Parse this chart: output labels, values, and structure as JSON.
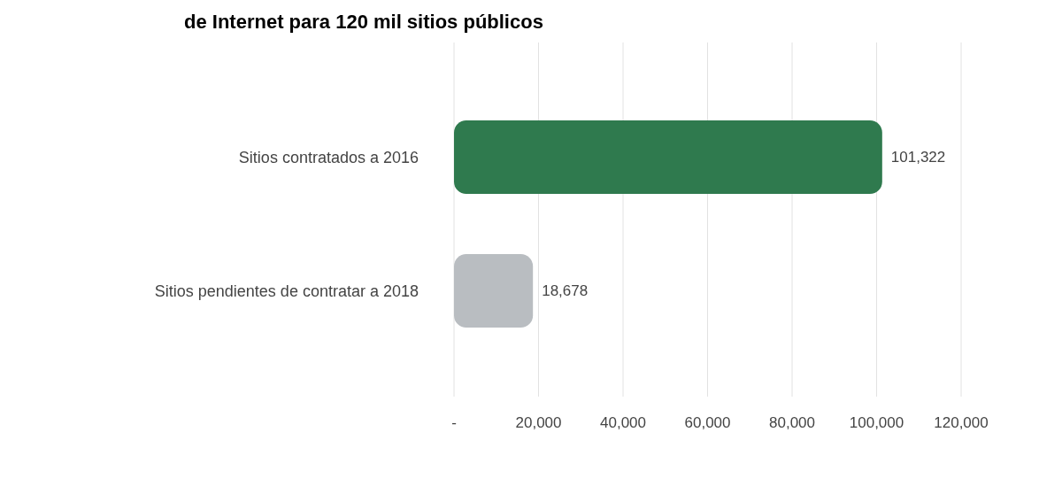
{
  "chart_data": {
    "type": "bar",
    "orientation": "horizontal",
    "title": "de Internet para 120 mil sitios públicos",
    "categories": [
      "Sitios contratados a 2016",
      "Sitios pendientes de contratar a 2018"
    ],
    "values": [
      101322,
      18678
    ],
    "colors": [
      "#2f7a4e",
      "#b9bdc1"
    ],
    "xlim": [
      0,
      120000
    ],
    "xticks": [
      {
        "value": 0,
        "label": "-"
      },
      {
        "value": 20000,
        "label": "20,000"
      },
      {
        "value": 40000,
        "label": "40,000"
      },
      {
        "value": 60000,
        "label": "60,000"
      },
      {
        "value": 80000,
        "label": "80,000"
      },
      {
        "value": 100000,
        "label": "100,000"
      },
      {
        "value": 120000,
        "label": "120,000"
      }
    ],
    "grid": "x",
    "value_labels": [
      "101,322",
      "18,678"
    ]
  }
}
